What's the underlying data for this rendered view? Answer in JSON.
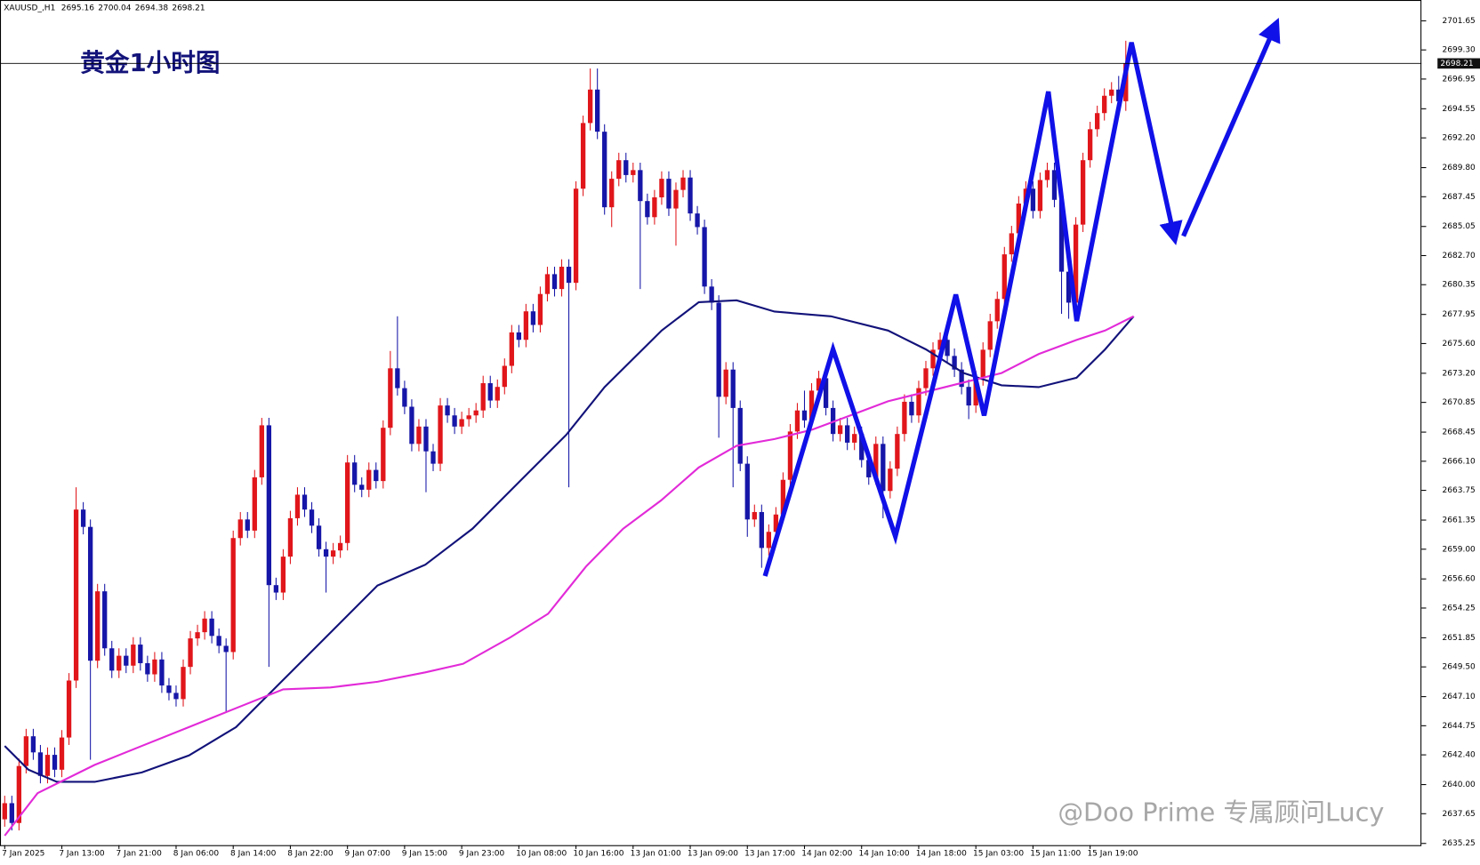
{
  "chart_data": {
    "type": "candlestick",
    "symbol": "XAUUSD_,H1",
    "title": "黄金1小时图",
    "watermark": "@Doo Prime 专属顾问Lucy",
    "up_color": "#e0161b",
    "down_color": "#1616a8",
    "xtick_labels": [
      "7 Jan 2025",
      "7 Jan 13:00",
      "7 Jan 21:00",
      "8 Jan 06:00",
      "8 Jan 14:00",
      "8 Jan 22:00",
      "9 Jan 07:00",
      "9 Jan 15:00",
      "9 Jan 23:00",
      "10 Jan 08:00",
      "10 Jan 16:00",
      "13 Jan 01:00",
      "13 Jan 09:00",
      "13 Jan 17:00",
      "14 Jan 02:00",
      "14 Jan 10:00",
      "14 Jan 18:00",
      "15 Jan 03:00",
      "15 Jan 11:00",
      "15 Jan 19:00"
    ],
    "xlim": [
      -0.66,
      198.4
    ],
    "ylim": [
      2635.11,
      2703.33
    ],
    "yticks": [
      2701.65,
      {
        "value": 2699.3,
        "label": "2699.30"
      },
      2696.95,
      2694.55,
      {
        "value": 2692.2,
        "label": "2692.20"
      },
      {
        "value": 2689.8,
        "label": "2689.80"
      },
      2687.45,
      2685.05,
      {
        "value": 2682.7,
        "label": "2682.70"
      },
      2680.35,
      2677.95,
      {
        "value": 2675.6,
        "label": "2675.60"
      },
      {
        "value": 2673.2,
        "label": "2673.20"
      },
      2670.85,
      2668.45,
      {
        "value": 2666.1,
        "label": "2666.10"
      },
      2663.75,
      2661.35,
      {
        "value": 2659,
        "label": "2659.00"
      },
      {
        "value": 2656.6,
        "label": "2656.60"
      },
      2654.25,
      2651.85,
      {
        "value": 2649.5,
        "label": "2649.50"
      },
      {
        "value": 2647.1,
        "label": "2647.10"
      },
      2644.75,
      {
        "value": 2642.4,
        "label": "2642.40"
      },
      {
        "value": 2640,
        "label": "2640.00"
      },
      2637.65,
      2635.25
    ],
    "ohlc": [
      [
        2637.2,
        2639.1,
        2636.6,
        2638.5
      ],
      [
        2638.5,
        2639.1,
        2636.3,
        2636.9
      ],
      [
        2636.9,
        2642.1,
        2636.3,
        2641.5
      ],
      [
        2641.5,
        2644.5,
        2640.9,
        2643.9
      ],
      [
        2643.9,
        2644.5,
        2642.0,
        2642.6
      ],
      [
        2642.6,
        2643.2,
        2640.1,
        2640.7
      ],
      [
        2640.7,
        2643.0,
        2640.1,
        2642.4
      ],
      [
        2642.4,
        2643.0,
        2640.6,
        2641.2
      ],
      [
        2641.2,
        2644.4,
        2640.6,
        2643.8
      ],
      [
        2643.8,
        2649.0,
        2643.2,
        2648.4
      ],
      [
        2648.4,
        2664.0,
        2647.8,
        2662.2
      ],
      [
        2662.2,
        2662.8,
        2660.2,
        2660.8
      ],
      [
        2660.8,
        2661.4,
        2642.0,
        2650.0
      ],
      [
        2650.0,
        2656.2,
        2649.4,
        2655.6
      ],
      [
        2655.6,
        2656.2,
        2650.4,
        2651.0
      ],
      [
        2651.0,
        2651.6,
        2648.6,
        2649.2
      ],
      [
        2649.2,
        2651.0,
        2648.6,
        2650.4
      ],
      [
        2650.4,
        2651.0,
        2649.0,
        2649.6
      ],
      [
        2649.6,
        2651.9,
        2649.0,
        2651.3
      ],
      [
        2651.3,
        2651.9,
        2649.2,
        2649.8
      ],
      [
        2649.8,
        2650.4,
        2648.3,
        2648.9
      ],
      [
        2648.9,
        2650.7,
        2648.3,
        2650.1
      ],
      [
        2650.1,
        2650.7,
        2647.4,
        2648.0
      ],
      [
        2648.0,
        2648.6,
        2646.8,
        2647.4
      ],
      [
        2647.4,
        2648.0,
        2646.3,
        2646.9
      ],
      [
        2646.9,
        2650.1,
        2646.3,
        2649.5
      ],
      [
        2649.5,
        2652.4,
        2648.9,
        2651.8
      ],
      [
        2651.8,
        2652.9,
        2651.2,
        2652.3
      ],
      [
        2652.3,
        2654.0,
        2651.7,
        2653.4
      ],
      [
        2653.4,
        2654.0,
        2651.4,
        2652.0
      ],
      [
        2652.0,
        2652.6,
        2650.6,
        2651.2
      ],
      [
        2651.2,
        2651.8,
        2645.8,
        2650.7
      ],
      [
        2650.7,
        2660.5,
        2650.1,
        2659.9
      ],
      [
        2659.9,
        2662.0,
        2659.3,
        2661.4
      ],
      [
        2661.4,
        2662.0,
        2659.9,
        2660.5
      ],
      [
        2660.5,
        2665.4,
        2659.9,
        2664.8
      ],
      [
        2664.8,
        2669.6,
        2664.2,
        2669.0
      ],
      [
        2669.0,
        2669.6,
        2649.5,
        2656.1
      ],
      [
        2656.1,
        2656.7,
        2654.9,
        2655.5
      ],
      [
        2655.5,
        2659.0,
        2654.9,
        2658.4
      ],
      [
        2658.4,
        2662.1,
        2657.8,
        2661.5
      ],
      [
        2661.5,
        2664.0,
        2660.9,
        2663.4
      ],
      [
        2663.4,
        2664.0,
        2661.6,
        2662.2
      ],
      [
        2662.2,
        2662.8,
        2660.3,
        2660.9
      ],
      [
        2660.9,
        2661.5,
        2658.4,
        2659.0
      ],
      [
        2659.0,
        2659.6,
        2655.5,
        2658.4
      ],
      [
        2658.4,
        2659.5,
        2657.8,
        2658.9
      ],
      [
        2658.9,
        2660.1,
        2658.3,
        2659.5
      ],
      [
        2659.5,
        2666.6,
        2658.9,
        2666.0
      ],
      [
        2666.0,
        2666.6,
        2663.6,
        2664.2
      ],
      [
        2664.2,
        2664.8,
        2663.2,
        2663.8
      ],
      [
        2663.8,
        2666.0,
        2663.2,
        2665.4
      ],
      [
        2665.4,
        2666.0,
        2663.9,
        2664.5
      ],
      [
        2664.5,
        2669.4,
        2663.9,
        2668.8
      ],
      [
        2668.8,
        2675.0,
        2668.2,
        2673.6
      ],
      [
        2673.6,
        2677.8,
        2671.4,
        2672.0
      ],
      [
        2672.0,
        2672.6,
        2669.9,
        2670.5
      ],
      [
        2670.5,
        2671.1,
        2666.9,
        2667.5
      ],
      [
        2667.5,
        2669.5,
        2666.9,
        2668.9
      ],
      [
        2668.9,
        2669.5,
        2663.6,
        2666.9
      ],
      [
        2666.9,
        2667.5,
        2665.3,
        2665.9
      ],
      [
        2665.9,
        2671.2,
        2665.3,
        2670.6
      ],
      [
        2670.6,
        2671.2,
        2669.2,
        2669.8
      ],
      [
        2669.8,
        2670.4,
        2668.3,
        2668.9
      ],
      [
        2668.9,
        2670.1,
        2668.3,
        2669.5
      ],
      [
        2669.5,
        2670.4,
        2668.9,
        2669.8
      ],
      [
        2669.8,
        2670.8,
        2669.2,
        2670.2
      ],
      [
        2670.2,
        2673.0,
        2669.6,
        2672.4
      ],
      [
        2672.4,
        2673.0,
        2670.4,
        2671.0
      ],
      [
        2671.0,
        2672.7,
        2670.4,
        2672.1
      ],
      [
        2672.1,
        2674.4,
        2671.5,
        2673.8
      ],
      [
        2673.8,
        2677.1,
        2673.2,
        2676.5
      ],
      [
        2676.5,
        2677.1,
        2675.3,
        2675.9
      ],
      [
        2675.9,
        2678.8,
        2675.3,
        2678.2
      ],
      [
        2678.2,
        2678.8,
        2676.5,
        2677.1
      ],
      [
        2677.1,
        2680.2,
        2676.5,
        2679.6
      ],
      [
        2679.6,
        2681.8,
        2679.0,
        2681.2
      ],
      [
        2681.2,
        2681.8,
        2679.4,
        2680.0
      ],
      [
        2680.0,
        2682.4,
        2679.4,
        2681.8
      ],
      [
        2681.8,
        2682.4,
        2664.0,
        2680.5
      ],
      [
        2680.5,
        2688.7,
        2679.9,
        2688.1
      ],
      [
        2688.1,
        2694.0,
        2687.5,
        2693.4
      ],
      [
        2693.4,
        2697.8,
        2692.8,
        2696.1
      ],
      [
        2696.1,
        2697.8,
        2692.1,
        2692.7
      ],
      [
        2692.7,
        2693.3,
        2686.0,
        2686.6
      ],
      [
        2686.6,
        2689.5,
        2685.0,
        2688.9
      ],
      [
        2688.9,
        2691.0,
        2688.3,
        2690.4
      ],
      [
        2690.4,
        2691.0,
        2688.6,
        2689.2
      ],
      [
        2689.2,
        2690.2,
        2688.6,
        2689.6
      ],
      [
        2689.6,
        2690.2,
        2680.0,
        2687.1
      ],
      [
        2687.1,
        2687.7,
        2685.2,
        2685.8
      ],
      [
        2685.8,
        2688.0,
        2685.2,
        2687.4
      ],
      [
        2687.4,
        2689.5,
        2686.8,
        2688.9
      ],
      [
        2688.9,
        2689.5,
        2685.9,
        2686.5
      ],
      [
        2686.5,
        2688.6,
        2683.5,
        2688.0
      ],
      [
        2688.0,
        2689.6,
        2687.4,
        2689.0
      ],
      [
        2689.0,
        2689.6,
        2685.5,
        2686.1
      ],
      [
        2686.1,
        2686.7,
        2684.4,
        2685.0
      ],
      [
        2685.0,
        2685.6,
        2679.6,
        2680.2
      ],
      [
        2680.2,
        2680.8,
        2678.3,
        2678.9
      ],
      [
        2678.9,
        2679.5,
        2668.0,
        2671.3
      ],
      [
        2671.3,
        2674.1,
        2670.7,
        2673.5
      ],
      [
        2673.5,
        2674.1,
        2664.0,
        2670.4
      ],
      [
        2670.4,
        2671.0,
        2665.3,
        2665.9
      ],
      [
        2665.9,
        2666.5,
        2660.0,
        2661.4
      ],
      [
        2661.4,
        2662.6,
        2660.8,
        2662.0
      ],
      [
        2662.0,
        2662.6,
        2657.5,
        2659.1
      ],
      [
        2659.1,
        2661.0,
        2658.5,
        2660.4
      ],
      [
        2660.4,
        2662.4,
        2659.8,
        2661.8
      ],
      [
        2661.8,
        2665.2,
        2661.2,
        2664.6
      ],
      [
        2664.6,
        2669.1,
        2664.0,
        2668.5
      ],
      [
        2668.5,
        2670.8,
        2667.9,
        2670.2
      ],
      [
        2670.2,
        2671.8,
        2668.8,
        2669.4
      ],
      [
        2669.4,
        2672.4,
        2668.8,
        2671.8
      ],
      [
        2671.8,
        2673.4,
        2671.2,
        2672.8
      ],
      [
        2672.8,
        2673.4,
        2669.8,
        2670.4
      ],
      [
        2670.4,
        2671.0,
        2667.7,
        2668.3
      ],
      [
        2668.3,
        2669.6,
        2667.7,
        2669.0
      ],
      [
        2669.0,
        2669.6,
        2667.0,
        2667.6
      ],
      [
        2667.6,
        2668.9,
        2667.0,
        2668.3
      ],
      [
        2668.3,
        2668.9,
        2665.6,
        2666.2
      ],
      [
        2666.2,
        2666.8,
        2664.2,
        2664.8
      ],
      [
        2664.8,
        2668.1,
        2664.2,
        2667.5
      ],
      [
        2667.5,
        2668.1,
        2661.5,
        2663.7
      ],
      [
        2663.7,
        2666.1,
        2663.1,
        2665.5
      ],
      [
        2665.5,
        2668.9,
        2664.9,
        2668.3
      ],
      [
        2668.3,
        2671.5,
        2667.7,
        2670.9
      ],
      [
        2670.9,
        2671.5,
        2669.2,
        2669.8
      ],
      [
        2669.8,
        2672.6,
        2669.2,
        2672.0
      ],
      [
        2672.0,
        2674.2,
        2671.4,
        2673.6
      ],
      [
        2673.6,
        2675.7,
        2673.0,
        2675.1
      ],
      [
        2675.1,
        2676.5,
        2674.5,
        2675.9
      ],
      [
        2675.9,
        2676.5,
        2674.0,
        2674.6
      ],
      [
        2674.6,
        2675.2,
        2672.9,
        2673.5
      ],
      [
        2673.5,
        2674.1,
        2671.5,
        2672.1
      ],
      [
        2672.1,
        2672.7,
        2669.5,
        2670.6
      ],
      [
        2670.6,
        2673.4,
        2670.0,
        2672.8
      ],
      [
        2672.8,
        2675.7,
        2672.2,
        2675.1
      ],
      [
        2675.1,
        2678.0,
        2674.5,
        2677.4
      ],
      [
        2677.4,
        2679.8,
        2676.8,
        2679.2
      ],
      [
        2679.2,
        2683.4,
        2678.6,
        2682.8
      ],
      [
        2682.8,
        2685.1,
        2682.2,
        2684.5
      ],
      [
        2684.5,
        2687.5,
        2683.9,
        2686.9
      ],
      [
        2686.9,
        2688.7,
        2686.3,
        2688.1
      ],
      [
        2688.1,
        2688.7,
        2685.7,
        2686.3
      ],
      [
        2686.3,
        2689.4,
        2685.7,
        2688.8
      ],
      [
        2688.8,
        2690.2,
        2688.2,
        2689.6
      ],
      [
        2689.6,
        2690.2,
        2686.6,
        2687.2
      ],
      [
        2687.2,
        2687.8,
        2678.0,
        2681.4
      ],
      [
        2681.4,
        2682.0,
        2677.6,
        2678.9
      ],
      [
        2678.9,
        2685.8,
        2678.3,
        2685.2
      ],
      [
        2685.2,
        2691.0,
        2684.6,
        2690.4
      ],
      [
        2690.4,
        2693.5,
        2689.8,
        2692.9
      ],
      [
        2692.9,
        2694.8,
        2692.3,
        2694.2
      ],
      [
        2694.2,
        2696.2,
        2693.6,
        2695.6
      ],
      [
        2695.6,
        2696.7,
        2695.0,
        2696.1
      ],
      [
        2696.1,
        2697.2,
        2694.6,
        2695.16
      ],
      [
        2695.16,
        2700.04,
        2694.38,
        2698.21
      ]
    ],
    "lines": [
      {
        "color": "#12127a",
        "x": [
          0,
          3.3,
          7.3,
          12.6,
          19.2,
          25.8,
          32.4,
          39,
          45.6,
          52.2,
          58.9,
          65.5,
          72.1,
          78.7,
          84,
          92,
          97.2,
          102.5,
          107.8,
          115.7,
          123.7,
          129,
          134.3,
          139.6,
          144.8,
          150.1,
          154.1,
          158.1
        ],
        "values": [
          2643.12,
          2641.21,
          2640.22,
          2640.22,
          2640.98,
          2642.35,
          2644.64,
          2648.45,
          2652.26,
          2656.07,
          2657.75,
          2660.65,
          2664.46,
          2668.27,
          2672.08,
          2676.65,
          2678.94,
          2679.09,
          2678.18,
          2677.8,
          2676.65,
          2675.13,
          2673.22,
          2672.23,
          2672.08,
          2672.84,
          2675.13,
          2677.8
        ]
      },
      {
        "color": "#e22ad8",
        "x": [
          0,
          4.6,
          12.6,
          19.2,
          25.8,
          32.4,
          39,
          45.6,
          52.2,
          58.9,
          64.2,
          70.8,
          76.1,
          81.4,
          86.6,
          91.9,
          97.2,
          102.5,
          107.8,
          113.1,
          118.4,
          123.7,
          129,
          134.3,
          139.6,
          144.8,
          150.1,
          154.1,
          158.1
        ],
        "values": [
          2635.88,
          2639.31,
          2641.59,
          2643.12,
          2644.64,
          2646.17,
          2647.69,
          2647.84,
          2648.3,
          2649.06,
          2649.75,
          2651.88,
          2653.79,
          2657.6,
          2660.65,
          2662.93,
          2665.6,
          2667.35,
          2667.89,
          2668.65,
          2669.79,
          2670.94,
          2671.7,
          2672.46,
          2673.22,
          2674.75,
          2675.89,
          2676.65,
          2677.8
        ]
      }
    ]
  }
}
